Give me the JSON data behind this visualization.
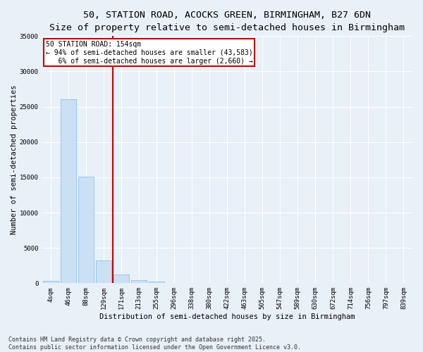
{
  "title_line1": "50, STATION ROAD, ACOCKS GREEN, BIRMINGHAM, B27 6DN",
  "title_line2": "Size of property relative to semi-detached houses in Birmingham",
  "xlabel": "Distribution of semi-detached houses by size in Birmingham",
  "ylabel": "Number of semi-detached properties",
  "categories": [
    "4sqm",
    "46sqm",
    "88sqm",
    "129sqm",
    "171sqm",
    "213sqm",
    "255sqm",
    "296sqm",
    "338sqm",
    "380sqm",
    "422sqm",
    "463sqm",
    "505sqm",
    "547sqm",
    "589sqm",
    "630sqm",
    "672sqm",
    "714sqm",
    "756sqm",
    "797sqm",
    "839sqm"
  ],
  "values": [
    350,
    26100,
    15100,
    3200,
    1200,
    450,
    200,
    50,
    0,
    0,
    0,
    0,
    0,
    0,
    0,
    0,
    0,
    0,
    0,
    0,
    0
  ],
  "bar_color": "#cce0f5",
  "bar_edgecolor": "#7db8e8",
  "annotation_line1": "50 STATION ROAD: 154sqm",
  "annotation_line2": "← 94% of semi-detached houses are smaller (43,583)",
  "annotation_line3": "   6% of semi-detached houses are larger (2,660) →",
  "annotation_box_color": "#ffffff",
  "annotation_box_edgecolor": "#cc0000",
  "annotation_vline_x": 3.5,
  "ylim": [
    0,
    35000
  ],
  "yticks": [
    0,
    5000,
    10000,
    15000,
    20000,
    25000,
    30000,
    35000
  ],
  "background_color": "#e8f0f8",
  "grid_color": "#ffffff",
  "footer_text": "Contains HM Land Registry data © Crown copyright and database right 2025.\nContains public sector information licensed under the Open Government Licence v3.0.",
  "title_fontsize": 9.5,
  "subtitle_fontsize": 8.5,
  "axis_label_fontsize": 7.5,
  "tick_fontsize": 6.5,
  "annotation_fontsize": 7,
  "footer_fontsize": 6
}
